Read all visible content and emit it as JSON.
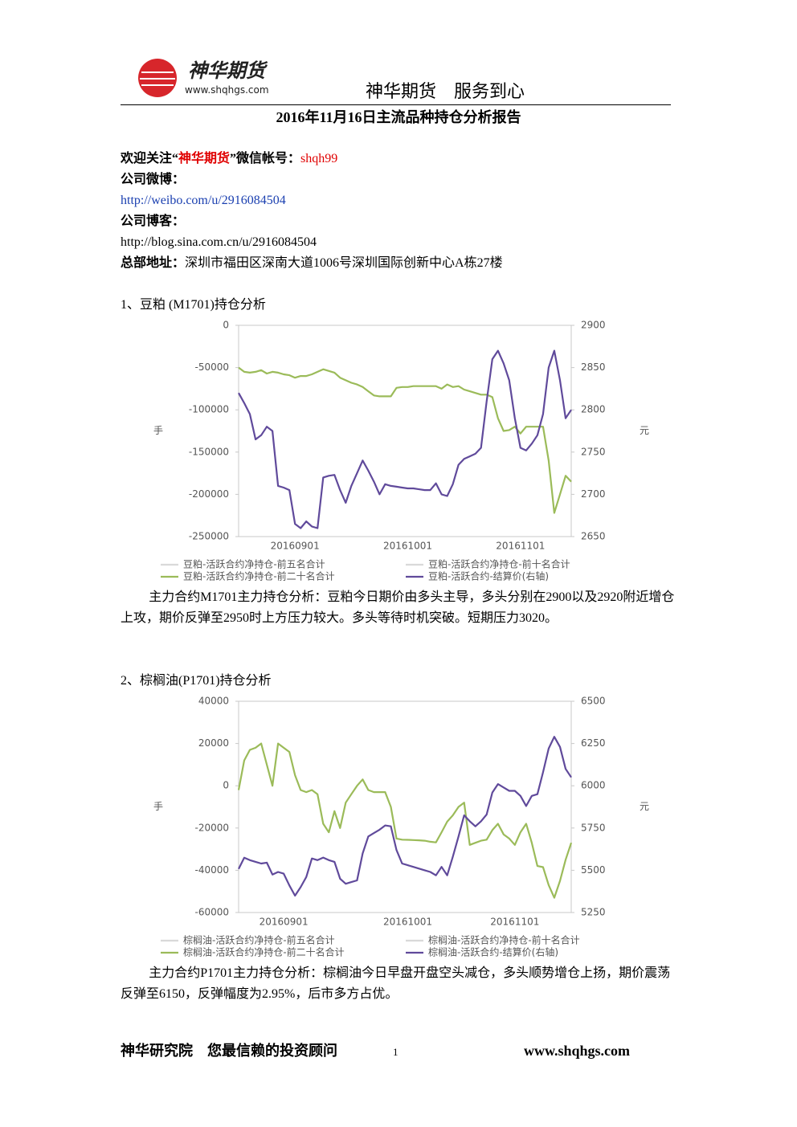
{
  "header": {
    "logo_name": "神华期货",
    "logo_url": "www.shqhgs.com",
    "slogan": "神华期货　服务到心"
  },
  "title": "2016年11月16日主流品种持仓分析报告",
  "contact": {
    "welcome_1": "欢迎关注“",
    "welcome_2": "神华期货",
    "welcome_3": "”微信帐号：",
    "wechat": "shqh99",
    "weibo_label": "公司微博：",
    "weibo_url": "http://weibo.com/u/2916084504",
    "blog_label": "公司博客：",
    "blog_url": "http://blog.sina.com.cn/u/2916084504",
    "address_label": "总部地址：",
    "address": "深圳市福田区深南大道1006号深圳国际创新中心A栋27楼"
  },
  "sections": [
    {
      "heading": "1、豆粕 (M1701)持仓分析",
      "paragraph": "主力合约M1701主力持仓分析：豆粕今日期价由多头主导，多头分别在2900以及2920附近增仓上攻，期价反弹至2950时上方压力较大。多头等待时机突破。短期压力3020。"
    },
    {
      "heading": "2、棕榈油(P1701)持仓分析",
      "paragraph": "主力合约P1701主力持仓分析：棕榈油今日早盘开盘空头减仓，多头顺势增仓上扬，期价震荡反弹至6150，反弹幅度为2.95%，后市多方占优。"
    }
  ],
  "footer": {
    "left": "神华研究院　您最信赖的投资顾问",
    "page": "1",
    "right": "www.shqhgs.com"
  },
  "chart_data": [
    {
      "type": "line",
      "ylabel": "手",
      "y2label": "元",
      "categories": [
        null,
        null,
        null,
        null,
        null,
        null,
        null,
        null,
        null,
        null,
        "20160901",
        null,
        null,
        null,
        null,
        null,
        null,
        null,
        null,
        null,
        null,
        null,
        null,
        null,
        null,
        null,
        null,
        null,
        null,
        null,
        "20161001",
        null,
        null,
        null,
        null,
        null,
        null,
        null,
        null,
        null,
        null,
        null,
        null,
        null,
        null,
        null,
        null,
        null,
        null,
        null,
        "20161101",
        null,
        null,
        null,
        null,
        null,
        null,
        null,
        null,
        null
      ],
      "ylim": [
        -250000,
        0
      ],
      "yticks": [
        0,
        -50000,
        -100000,
        -150000,
        -200000,
        -250000
      ],
      "y2lim": [
        2650,
        2900
      ],
      "y2ticks": [
        2900,
        2850,
        2800,
        2750,
        2700,
        2650
      ],
      "series": [
        {
          "name": "豆粕-活跃合约净持仓-前五名合计",
          "color": "#d9d9d9",
          "values": [
            null,
            null,
            null,
            null,
            null,
            null,
            null,
            null,
            null,
            null,
            null,
            null,
            null,
            null,
            null,
            null,
            null,
            null,
            null,
            null,
            null,
            null,
            null,
            null,
            null,
            null,
            null,
            null,
            null,
            null,
            null,
            null,
            null,
            null,
            null,
            null,
            null,
            null,
            null,
            null,
            null,
            null,
            null,
            null,
            null,
            null,
            null,
            null,
            null,
            null,
            null,
            null,
            null,
            null,
            null,
            null,
            null,
            null,
            null,
            null
          ]
        },
        {
          "name": "豆粕-活跃合约净持仓-前十名合计",
          "color": "#d9d9d9",
          "values": [
            null,
            null,
            null,
            null,
            null,
            null,
            null,
            null,
            null,
            null,
            null,
            null,
            null,
            null,
            null,
            null,
            null,
            null,
            null,
            null,
            null,
            null,
            null,
            null,
            null,
            null,
            null,
            null,
            null,
            null,
            null,
            null,
            null,
            null,
            null,
            null,
            null,
            null,
            null,
            null,
            null,
            null,
            null,
            null,
            null,
            null,
            null,
            null,
            null,
            null,
            null,
            null,
            null,
            null,
            null,
            null,
            null,
            null,
            null,
            null
          ]
        },
        {
          "name": "豆粕-活跃合约净持仓-前二十名合计",
          "color": "#9bbb59",
          "values": [
            -50000,
            -55000,
            -56000,
            -55000,
            -53000,
            -57000,
            -55000,
            -56000,
            -58000,
            -59000,
            -62000,
            -60000,
            -60000,
            -58000,
            -55000,
            -52000,
            -54000,
            -56000,
            -62000,
            -65000,
            -68000,
            -70000,
            -73000,
            -78000,
            -83000,
            -84000,
            -84000,
            -84000,
            -74000,
            -73000,
            -73000,
            -72000,
            -72000,
            -72000,
            -72000,
            -72000,
            -75000,
            -70000,
            -73000,
            -72000,
            -76000,
            -78000,
            -80000,
            -82000,
            -82000,
            -85000,
            -110000,
            -125000,
            -124000,
            -120000,
            -128000,
            -120000,
            -120000,
            -120000,
            -120000,
            -160000,
            -222000,
            -200000,
            -178000,
            -185000
          ]
        },
        {
          "name": "豆粕-活跃合约-结算价(右轴)",
          "color": "#604a9b",
          "axis": "y2",
          "values": [
            2820,
            2808,
            2795,
            2765,
            2770,
            2780,
            2775,
            2710,
            2708,
            2705,
            2665,
            2660,
            2668,
            2662,
            2660,
            2720,
            2722,
            2723,
            2705,
            2690,
            2710,
            2725,
            2740,
            2728,
            2715,
            2700,
            2712,
            2710,
            2709,
            2708,
            2707,
            2707,
            2706,
            2705,
            2705,
            2713,
            2700,
            2698,
            2712,
            2735,
            2742,
            2745,
            2748,
            2755,
            2810,
            2860,
            2870,
            2855,
            2835,
            2790,
            2755,
            2752,
            2760,
            2770,
            2795,
            2850,
            2870,
            2835,
            2790,
            2800
          ]
        }
      ]
    },
    {
      "type": "line",
      "ylabel": "手",
      "y2label": "元",
      "categories": [
        null,
        null,
        null,
        null,
        null,
        null,
        null,
        null,
        "20160901",
        null,
        null,
        null,
        null,
        null,
        null,
        null,
        null,
        null,
        null,
        null,
        null,
        null,
        null,
        null,
        null,
        null,
        null,
        null,
        null,
        null,
        "20161001",
        null,
        null,
        null,
        null,
        null,
        null,
        null,
        null,
        null,
        null,
        null,
        null,
        null,
        null,
        null,
        null,
        null,
        null,
        "20161101",
        null,
        null,
        null,
        null,
        null,
        null,
        null,
        null,
        null,
        null
      ],
      "ylim": [
        -60000,
        40000
      ],
      "yticks": [
        40000,
        20000,
        0,
        -20000,
        -40000,
        -60000
      ],
      "y2lim": [
        5250,
        6500
      ],
      "y2ticks": [
        6500,
        6250,
        6000,
        5750,
        5500,
        5250
      ],
      "series": [
        {
          "name": "棕榈油-活跃合约净持仓-前五名合计",
          "color": "#d9d9d9",
          "values": [
            null,
            null,
            null,
            null,
            null,
            null,
            null,
            null,
            null,
            null,
            null,
            null,
            null,
            null,
            null,
            null,
            null,
            null,
            null,
            null,
            null,
            null,
            null,
            null,
            null,
            null,
            null,
            null,
            null,
            null,
            null,
            null,
            null,
            null,
            null,
            null,
            null,
            null,
            null,
            null,
            null,
            null,
            null,
            null,
            null,
            null,
            null,
            null,
            null,
            null,
            null,
            null,
            null,
            null,
            null,
            null,
            null,
            null,
            null,
            null
          ]
        },
        {
          "name": "棕榈油-活跃合约净持仓-前十名合计",
          "color": "#d9d9d9",
          "values": [
            null,
            null,
            null,
            null,
            null,
            null,
            null,
            null,
            null,
            null,
            null,
            null,
            null,
            null,
            null,
            null,
            null,
            null,
            null,
            null,
            null,
            null,
            null,
            null,
            null,
            null,
            null,
            null,
            null,
            null,
            null,
            null,
            null,
            null,
            null,
            null,
            null,
            null,
            null,
            null,
            null,
            null,
            null,
            null,
            null,
            null,
            null,
            null,
            null,
            null,
            null,
            null,
            null,
            null,
            null,
            null,
            null,
            null,
            null,
            null
          ]
        },
        {
          "name": "棕榈油-活跃合约净持仓-前二十名合计",
          "color": "#9bbb59",
          "values": [
            -2000,
            12000,
            17000,
            18000,
            20000,
            10000,
            0,
            20000,
            18000,
            16000,
            5000,
            -2000,
            -3000,
            -2000,
            -4000,
            -18000,
            -22000,
            -12000,
            -20000,
            -8000,
            -4000,
            0,
            3000,
            -2000,
            -3000,
            -3000,
            -3000,
            -10000,
            -25000,
            -25500,
            -25600,
            -25700,
            -25800,
            -26000,
            -26500,
            -26800,
            -22000,
            -17000,
            -14000,
            -10000,
            -8000,
            -28000,
            -27000,
            -26000,
            -25500,
            -21000,
            -18000,
            -23000,
            -25000,
            -28000,
            -22000,
            -18000,
            -27000,
            -38000,
            -38500,
            -47000,
            -53000,
            -45000,
            -35000,
            -27000
          ]
        },
        {
          "name": "棕榈油-活跃合约-结算价(右轴)",
          "color": "#604a9b",
          "axis": "y2",
          "values": [
            5508,
            5574,
            5560,
            5550,
            5540,
            5545,
            5475,
            5490,
            5480,
            5410,
            5350,
            5400,
            5460,
            5570,
            5560,
            5575,
            5560,
            5550,
            5450,
            5420,
            5430,
            5440,
            5600,
            5700,
            5720,
            5740,
            5765,
            5760,
            5620,
            5540,
            5530,
            5520,
            5510,
            5500,
            5490,
            5470,
            5520,
            5470,
            5580,
            5700,
            5825,
            5790,
            5760,
            5790,
            5830,
            5960,
            6010,
            5990,
            5970,
            5970,
            5940,
            5880,
            5940,
            5950,
            6080,
            6220,
            6290,
            6230,
            6100,
            6050
          ]
        }
      ]
    }
  ]
}
